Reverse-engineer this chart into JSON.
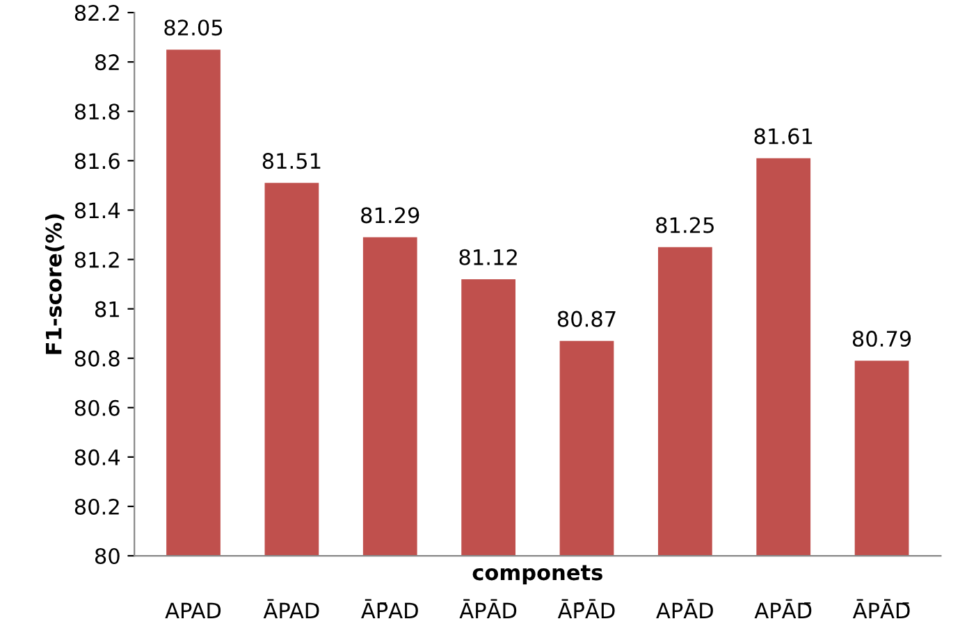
{
  "chart_data": {
    "type": "bar",
    "xlabel": "componets",
    "ylabel": "F1-score(%)",
    "categories": [
      "APAD",
      "ĀPAD",
      "ĀP̄AD",
      "ĀPĀD",
      "ĀP̄ĀD",
      "APĀD",
      "APĀD̄",
      "ĀPĀD̄"
    ],
    "values": [
      82.05,
      81.51,
      81.29,
      81.12,
      80.87,
      81.25,
      81.61,
      80.79
    ],
    "color": "#c0504d",
    "ylim": [
      80,
      82.2
    ],
    "yticks": [
      80,
      80.2,
      80.4,
      80.6,
      80.8,
      81,
      81.2,
      81.4,
      81.6,
      81.8,
      82,
      82.2
    ],
    "data_labels": true,
    "grid": false
  }
}
